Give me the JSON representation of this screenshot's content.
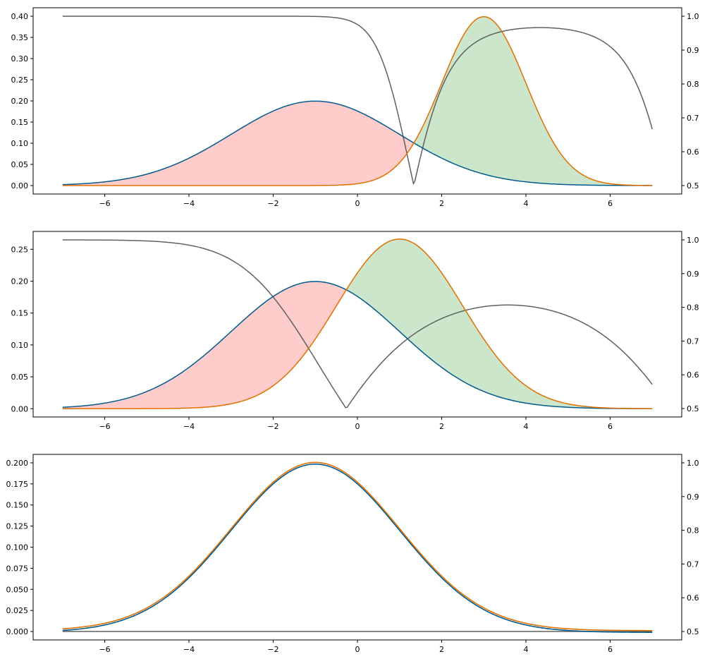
{
  "colors": {
    "blue": "#005a8c",
    "orange": "#e07000",
    "gray": "#606060",
    "red_fill": "#ffcccc",
    "green_fill": "#cce6cc"
  },
  "chart_data": [
    {
      "type": "line",
      "x_range": [
        -7,
        7
      ],
      "xlim": [
        -7.7,
        7.7
      ],
      "xticks": [
        -6,
        -4,
        -2,
        0,
        2,
        4,
        6
      ],
      "xtick_labels": [
        "−6",
        "−4",
        "−2",
        "0",
        "2",
        "4",
        "6"
      ],
      "left_ylim": [
        -0.02,
        0.42
      ],
      "left_yticks": [
        "0.00",
        "0.05",
        "0.10",
        "0.15",
        "0.20",
        "0.25",
        "0.30",
        "0.35",
        "0.40"
      ],
      "right_ylim": [
        0.475,
        1.025
      ],
      "right_yticks": [
        "0.5",
        "0.6",
        "0.7",
        "0.8",
        "0.9",
        "1.0"
      ],
      "series": [
        {
          "kind": "normal_pdf",
          "mean": -1,
          "std": 2,
          "color": "blue"
        },
        {
          "kind": "normal_pdf",
          "mean": 3,
          "std": 1,
          "color": "orange"
        },
        {
          "kind": "max_posterior",
          "axis": "right",
          "color": "gray"
        }
      ],
      "fill_regions": [
        {
          "where": "blue_greater",
          "color": "red_fill"
        },
        {
          "where": "orange_greater",
          "color": "green_fill"
        }
      ]
    },
    {
      "type": "line",
      "x_range": [
        -7,
        7
      ],
      "xlim": [
        -7.7,
        7.7
      ],
      "xticks": [
        -6,
        -4,
        -2,
        0,
        2,
        4,
        6
      ],
      "xtick_labels": [
        "−6",
        "−4",
        "−2",
        "0",
        "2",
        "4",
        "6"
      ],
      "left_ylim": [
        -0.013,
        0.278
      ],
      "left_yticks": [
        "0.00",
        "0.05",
        "0.10",
        "0.15",
        "0.20",
        "0.25"
      ],
      "right_ylim": [
        0.475,
        1.025
      ],
      "right_yticks": [
        "0.5",
        "0.6",
        "0.7",
        "0.8",
        "0.9",
        "1.0"
      ],
      "series": [
        {
          "kind": "normal_pdf",
          "mean": -1,
          "std": 2,
          "color": "blue"
        },
        {
          "kind": "normal_pdf",
          "mean": 1,
          "std": 1.5,
          "color": "orange"
        },
        {
          "kind": "max_posterior",
          "axis": "right",
          "color": "gray"
        }
      ],
      "fill_regions": [
        {
          "where": "blue_greater",
          "color": "red_fill"
        },
        {
          "where": "orange_greater",
          "color": "green_fill"
        }
      ]
    },
    {
      "type": "line",
      "x_range": [
        -7,
        7
      ],
      "xlim": [
        -7.7,
        7.7
      ],
      "xticks": [
        -6,
        -4,
        -2,
        0,
        2,
        4,
        6
      ],
      "xtick_labels": [
        "−6",
        "−4",
        "−2",
        "0",
        "2",
        "4",
        "6"
      ],
      "left_ylim": [
        -0.01,
        0.21
      ],
      "left_yticks": [
        "0.000",
        "0.025",
        "0.050",
        "0.075",
        "0.100",
        "0.125",
        "0.150",
        "0.175",
        "0.200"
      ],
      "right_ylim": [
        0.475,
        1.025
      ],
      "right_yticks": [
        "0.5",
        "0.6",
        "0.7",
        "0.8",
        "0.9",
        "1.0"
      ],
      "series": [
        {
          "kind": "normal_pdf",
          "mean": -1,
          "std": 2,
          "color": "blue"
        },
        {
          "kind": "normal_pdf",
          "mean": -1,
          "std": 2,
          "color": "orange"
        },
        {
          "kind": "max_posterior",
          "axis": "right",
          "color": "gray"
        }
      ],
      "fill_regions": []
    }
  ]
}
